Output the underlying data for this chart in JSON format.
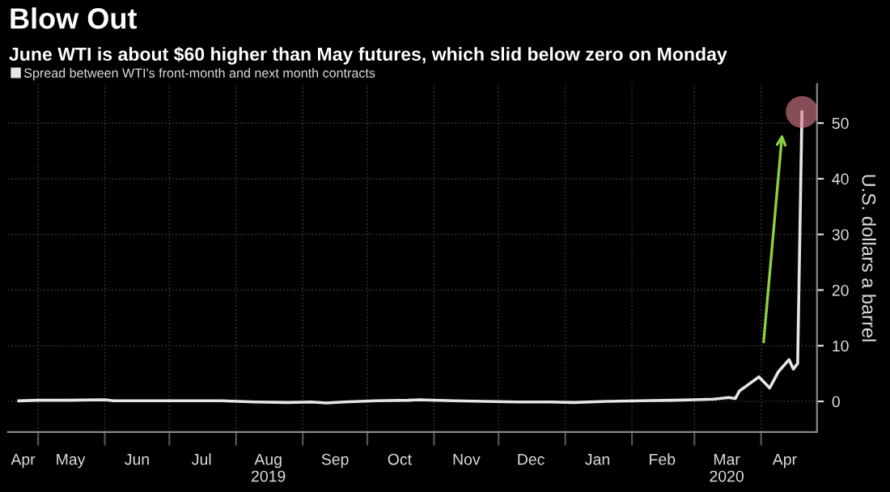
{
  "chart_data": {
    "type": "line",
    "title": "Blow Out",
    "subtitle": "June WTI is about $60 higher than May futures, which slid below zero on Monday",
    "ylabel": "U.S. dollars a barrel",
    "series": [
      {
        "name": "Spread between WTI's front-month and next month contracts",
        "color": "#e6e6e6",
        "x": [
          "2019-04-22",
          "2019-05-01",
          "2019-05-15",
          "2019-06-01",
          "2019-06-05",
          "2019-06-20",
          "2019-07-10",
          "2019-07-25",
          "2019-08-10",
          "2019-08-25",
          "2019-09-05",
          "2019-09-12",
          "2019-09-20",
          "2019-10-05",
          "2019-10-20",
          "2019-10-25",
          "2019-11-10",
          "2019-11-25",
          "2019-12-10",
          "2019-12-25",
          "2020-01-05",
          "2020-01-20",
          "2020-02-05",
          "2020-02-20",
          "2020-03-01",
          "2020-03-10",
          "2020-03-17",
          "2020-03-20",
          "2020-03-22",
          "2020-03-26",
          "2020-03-31",
          "2020-04-05",
          "2020-04-09",
          "2020-04-14",
          "2020-04-16",
          "2020-04-18",
          "2020-04-20"
        ],
        "values": [
          0.1,
          0.2,
          0.2,
          0.3,
          0.1,
          0.1,
          0.1,
          0.1,
          -0.1,
          -0.2,
          -0.1,
          -0.3,
          -0.1,
          0.1,
          0.2,
          0.3,
          0.1,
          0.0,
          -0.1,
          -0.1,
          -0.2,
          0.0,
          0.1,
          0.2,
          0.3,
          0.4,
          0.7,
          0.5,
          1.9,
          3.0,
          4.4,
          2.4,
          5.3,
          7.5,
          5.8,
          6.8,
          52
        ]
      }
    ],
    "xlim": [
      "2019-04-17",
      "2020-04-27"
    ],
    "xticks": [
      {
        "value": "2019-04-24",
        "label": "Apr"
      },
      {
        "value": "2019-05-16",
        "label": "May"
      },
      {
        "value": "2019-06-16",
        "label": "Jun"
      },
      {
        "value": "2019-07-16",
        "label": "Jul"
      },
      {
        "value": "2019-08-16",
        "label": "Aug\n2019"
      },
      {
        "value": "2019-09-16",
        "label": "Sep"
      },
      {
        "value": "2019-10-16",
        "label": "Oct"
      },
      {
        "value": "2019-11-16",
        "label": "Nov"
      },
      {
        "value": "2019-12-16",
        "label": "Dec"
      },
      {
        "value": "2020-01-16",
        "label": "Jan"
      },
      {
        "value": "2020-02-15",
        "label": "Feb"
      },
      {
        "value": "2020-03-16",
        "label": "Mar\n2020"
      },
      {
        "value": "2020-04-12",
        "label": "Apr"
      },
      {
        "value": "2019-05-01",
        "label": null
      },
      {
        "value": "2019-06-01",
        "label": null
      },
      {
        "value": "2019-07-01",
        "label": null
      },
      {
        "value": "2019-08-01",
        "label": null
      },
      {
        "value": "2019-09-01",
        "label": null
      },
      {
        "value": "2019-10-01",
        "label": null
      },
      {
        "value": "2019-11-01",
        "label": null
      },
      {
        "value": "2019-12-01",
        "label": null
      },
      {
        "value": "2020-01-01",
        "label": null
      },
      {
        "value": "2020-02-01",
        "label": null
      },
      {
        "value": "2020-03-01",
        "label": null
      },
      {
        "value": "2020-04-01",
        "label": null
      }
    ],
    "ylim": [
      -5.5,
      57
    ],
    "yticks": [
      0,
      10,
      20,
      30,
      40,
      50
    ],
    "grid": true,
    "legend": "top left"
  }
}
